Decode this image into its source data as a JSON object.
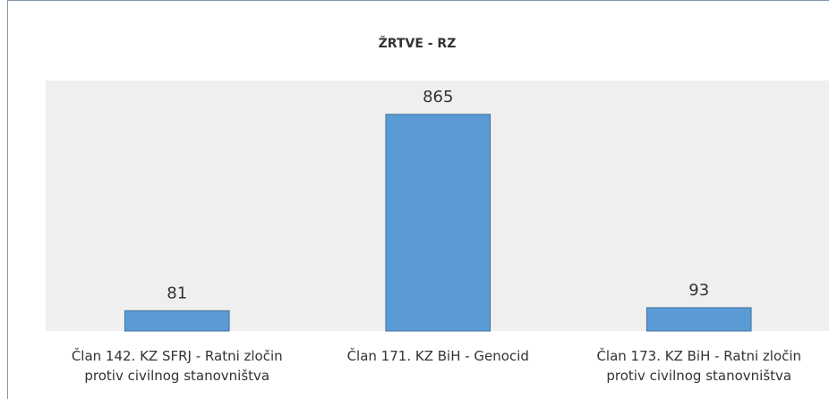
{
  "chart_data": {
    "type": "bar",
    "title": "ŽRTVE - RZ",
    "categories": [
      "Član 142. KZ SFRJ - Ratni zločin\nprotiv civilnog  stanovništva",
      "Član 171. KZ BiH - Genocid",
      "Član 173. KZ BiH - Ratni zločin\nprotiv civilnog stanovništva"
    ],
    "values": [
      81,
      865,
      93
    ],
    "color": "#5b9bd5",
    "ylim": [
      0,
      1000
    ]
  }
}
